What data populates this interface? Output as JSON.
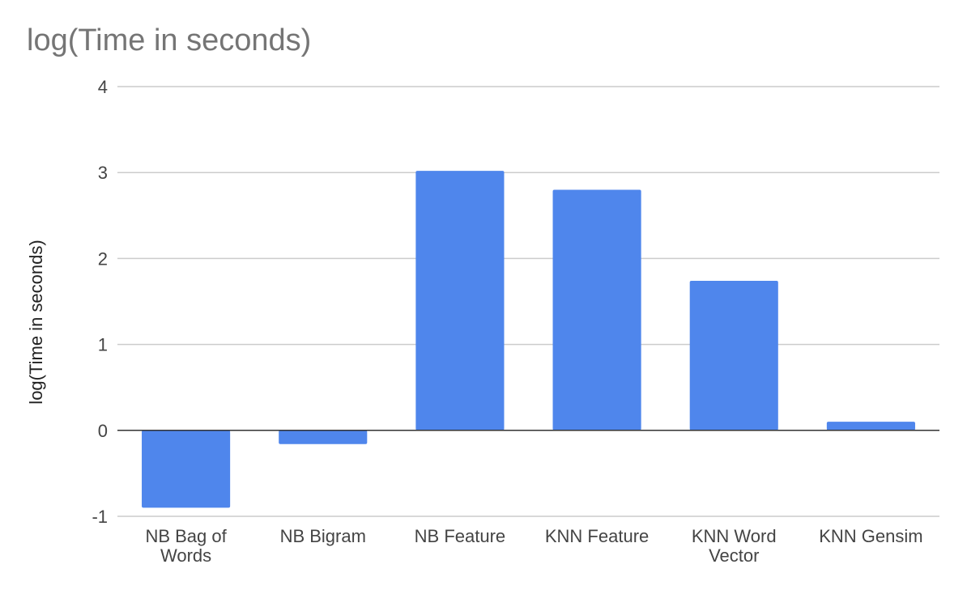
{
  "chart_data": {
    "type": "bar",
    "title": "log(Time in seconds)",
    "xlabel": "",
    "ylabel": "log(Time in seconds)",
    "categories": [
      "NB Bag of Words",
      "NB Bigram",
      "NB Feature",
      "KNN Feature",
      "KNN Word Vector",
      "KNN Gensim"
    ],
    "category_lines": [
      [
        "NB Bag of",
        "Words"
      ],
      [
        "NB Bigram"
      ],
      [
        "NB Feature"
      ],
      [
        "KNN Feature"
      ],
      [
        "KNN Word",
        "Vector"
      ],
      [
        "KNN Gensim"
      ]
    ],
    "values": [
      -0.9,
      -0.16,
      3.02,
      2.8,
      1.74,
      0.1
    ],
    "ylim": [
      -1,
      4
    ],
    "yticks": [
      "-1",
      "0",
      "1",
      "2",
      "3",
      "4"
    ],
    "grid": true,
    "bar_color": "#4f86ec",
    "grid_color": "#cccccc",
    "zero_line_color": "#333333"
  }
}
